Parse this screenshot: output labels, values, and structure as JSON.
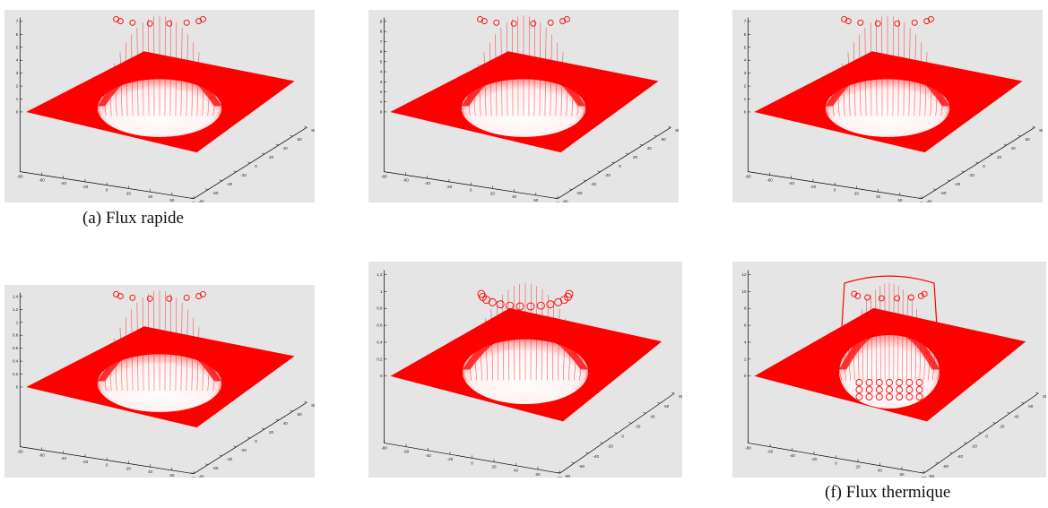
{
  "captions": {
    "a": "(a) Flux rapide",
    "f": "(f) Flux thermique"
  },
  "colors": {
    "surface": "#ff0000",
    "panel_background": "#e5e5e5",
    "axis": "#000000"
  },
  "chart_data": [
    {
      "type": "surface",
      "caption": "(a) Flux rapide",
      "zlim": [
        0,
        7
      ],
      "z_ticks": [
        "0",
        "1",
        "2",
        "3",
        "4",
        "5",
        "6",
        "7"
      ],
      "x_ticks": [
        "-80",
        "-60",
        "-40",
        "-20",
        "0",
        "20",
        "40",
        "60",
        "80"
      ],
      "y_ticks": [
        "-80",
        "-60",
        "-40",
        "-20",
        "0",
        "20",
        "40",
        "60",
        "80"
      ],
      "shape": "dome",
      "series_color": "#ff0000"
    },
    {
      "type": "surface",
      "caption": "",
      "zlim": [
        0,
        9
      ],
      "z_ticks": [
        "0",
        "1",
        "2",
        "3",
        "4",
        "5",
        "6",
        "7",
        "8",
        "9"
      ],
      "x_ticks": [
        "-80",
        "-60",
        "-40",
        "-20",
        "0",
        "20",
        "40",
        "60",
        "80"
      ],
      "y_ticks": [
        "-80",
        "-60",
        "-40",
        "-20",
        "0",
        "20",
        "40",
        "60",
        "80"
      ],
      "shape": "dome",
      "series_color": "#ff0000"
    },
    {
      "type": "surface",
      "caption": "",
      "zlim": [
        0,
        7
      ],
      "z_ticks": [
        "0",
        "1",
        "2",
        "3",
        "4",
        "5",
        "6",
        "7"
      ],
      "x_ticks": [
        "-80",
        "-60",
        "-40",
        "-20",
        "0",
        "20",
        "40",
        "60",
        "80"
      ],
      "y_ticks": [
        "-80",
        "-60",
        "-40",
        "-20",
        "0",
        "20",
        "40",
        "60",
        "80"
      ],
      "shape": "dome",
      "series_color": "#ff0000"
    },
    {
      "type": "surface",
      "caption": "",
      "zlim": [
        0,
        1.4
      ],
      "z_ticks": [
        "0",
        "0.2",
        "0.4",
        "0.6",
        "0.8",
        "1",
        "1.2",
        "1.4"
      ],
      "x_ticks": [
        "-80",
        "-60",
        "-40",
        "-20",
        "0",
        "20",
        "40",
        "60",
        "80"
      ],
      "y_ticks": [
        "-80",
        "-60",
        "-40",
        "-20",
        "0",
        "20",
        "40",
        "60",
        "80"
      ],
      "shape": "dome",
      "series_color": "#ff0000"
    },
    {
      "type": "surface",
      "caption": "",
      "zlim": [
        0,
        1.2
      ],
      "z_ticks": [
        "0",
        "0.2",
        "0.4",
        "0.6",
        "0.8",
        "1",
        "1.2"
      ],
      "x_ticks": [
        "-80",
        "-60",
        "-40",
        "-20",
        "0",
        "20",
        "40",
        "60",
        "80"
      ],
      "y_ticks": [
        "-80",
        "-60",
        "-40",
        "-20",
        "0",
        "20",
        "40",
        "60",
        "80"
      ],
      "shape": "crown",
      "series_color": "#ff0000"
    },
    {
      "type": "surface",
      "caption": "(f) Flux thermique",
      "zlim": [
        0,
        12
      ],
      "z_ticks": [
        "0",
        "2",
        "4",
        "6",
        "8",
        "10",
        "12"
      ],
      "x_ticks": [
        "-80",
        "-60",
        "-40",
        "-20",
        "0",
        "20",
        "40",
        "60",
        "80"
      ],
      "y_ticks": [
        "-80",
        "-60",
        "-40",
        "-20",
        "0",
        "20",
        "40",
        "60",
        "80"
      ],
      "shape": "bowl",
      "series_color": "#ff0000"
    }
  ]
}
